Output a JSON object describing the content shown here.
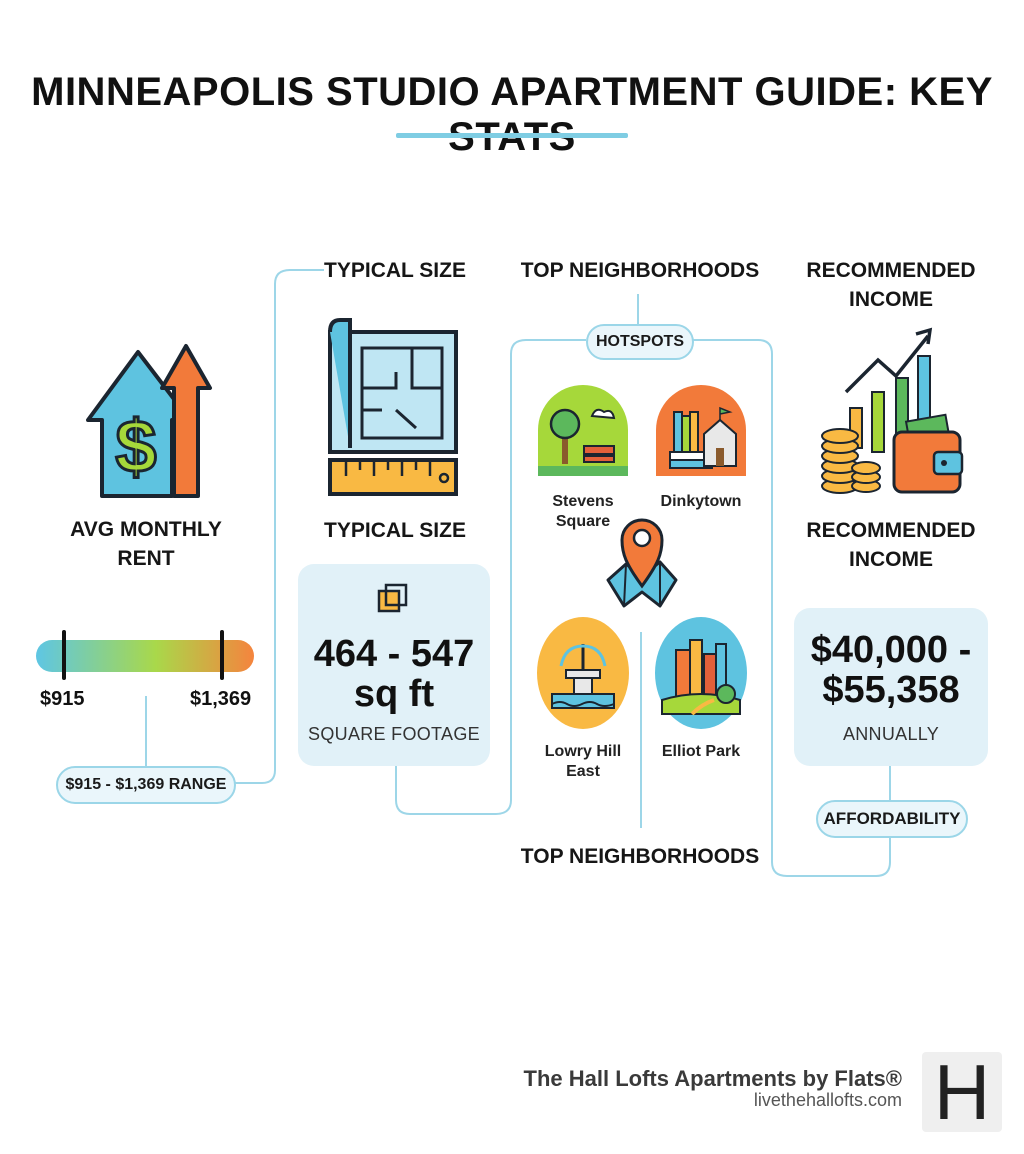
{
  "title": "MINNEAPOLIS STUDIO APARTMENT GUIDE: KEY STATS",
  "colors": {
    "accent_line": "#7fcde3",
    "card_bg": "#e1f1f8",
    "pill_border": "#9bd6e8"
  },
  "rent": {
    "heading": "AVG MONTHLY RENT",
    "icon": "house-dollar-arrow-icon",
    "low": "$915",
    "high": "$1,369",
    "range_label": "$915 - $1,369 RANGE"
  },
  "size": {
    "heading_top": "TYPICAL SIZE",
    "heading": "TYPICAL SIZE",
    "icon": "blueprint-ruler-icon",
    "value": "464 - 547 sq ft",
    "caption": "SQUARE FOOTAGE"
  },
  "neighborhoods": {
    "heading_top": "TOP NEIGHBORHOODS",
    "heading_bottom": "TOP NEIGHBORHOODS",
    "hotspots_label": "HOTSPOTS",
    "items": [
      {
        "name": "Stevens Square",
        "icon": "park-icon"
      },
      {
        "name": "Dinkytown",
        "icon": "books-campus-icon"
      },
      {
        "name": "Lowry Hill East",
        "icon": "fountain-icon"
      },
      {
        "name": "Elliot Park",
        "icon": "city-park-icon"
      }
    ]
  },
  "income": {
    "heading_top": "RECOMMENDED INCOME",
    "heading": "RECOMMENDED INCOME",
    "icon": "coins-wallet-chart-icon",
    "value": "$40,000 - $55,358",
    "caption": "ANNUALLY",
    "pill": "AFFORDABILITY"
  },
  "footer": {
    "name": "The Hall Lofts Apartments by Flats®",
    "url": "livethehallofts.com",
    "logo_letter": "H"
  }
}
